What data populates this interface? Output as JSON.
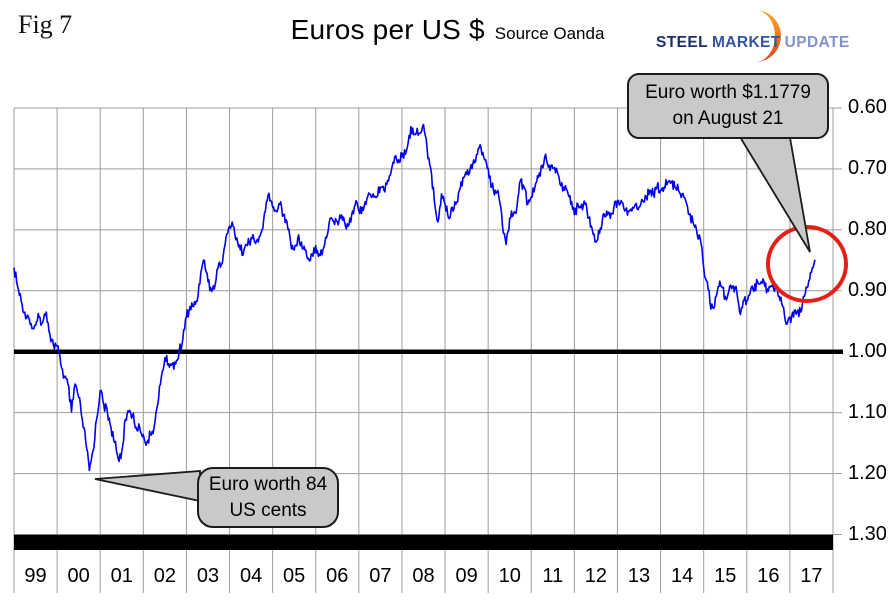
{
  "header": {
    "fig_label": "Fig 7",
    "title": "Euros per US $",
    "source": "Source Oanda",
    "logo": {
      "word1": "STEEL",
      "word2": "MARKET",
      "word3": "UPDATE"
    }
  },
  "annotations": {
    "callout_top": {
      "line1": "Euro worth $1.1779",
      "line2": "on August 21"
    },
    "callout_bottom": {
      "line1": "Euro worth 84",
      "line2": "US cents"
    }
  },
  "colors": {
    "line": "#0000ee",
    "grid": "#9d9d9d",
    "reference_line": "#000000",
    "callout_fill": "#c9c9c9",
    "circle": "#e41f18",
    "logo_steel": "#1b2f69",
    "logo_market": "#33549f",
    "logo_update": "#8193c7",
    "logo_swoosh_top": "#f7a823",
    "logo_swoosh_mid": "#ef7b22",
    "logo_swoosh_bottom": "#dc3b24"
  },
  "chart_data": {
    "type": "line",
    "title": "Euros per US $",
    "source": "Source Oanda",
    "ylabel": "",
    "xlabel": "",
    "y_axis_inverted": true,
    "ylim": [
      0.6,
      1.3
    ],
    "grid": true,
    "reference_line_value": 1.0,
    "bottom_bar_value": 1.3,
    "x_tick_labels": [
      "99",
      "00",
      "01",
      "02",
      "03",
      "04",
      "05",
      "06",
      "07",
      "08",
      "09",
      "10",
      "11",
      "12",
      "13",
      "14",
      "15",
      "16",
      "17"
    ],
    "y_tick_labels": [
      "0.60",
      "0.70",
      "0.80",
      "0.90",
      "1.00",
      "1.10",
      "1.20",
      "1.30"
    ],
    "annotation_points": [
      {
        "label": "Euro worth $1.1779 on August 21",
        "date": "2017-08-21",
        "value": 0.849
      },
      {
        "label": "Euro worth 84 US cents",
        "date": "2000-10",
        "value": 1.2
      }
    ],
    "series": [
      {
        "name": "Euros per US dollar (monthly, Jan 1999 - Aug 2017)",
        "start": "1999-01",
        "monthly_values": [
          0.862,
          0.893,
          0.917,
          0.935,
          0.943,
          0.962,
          0.957,
          0.943,
          0.952,
          0.935,
          0.971,
          0.99,
          0.99,
          1.02,
          1.042,
          1.053,
          1.099,
          1.053,
          1.075,
          1.111,
          1.149,
          1.195,
          1.163,
          1.111,
          1.064,
          1.087,
          1.099,
          1.124,
          1.149,
          1.176,
          1.163,
          1.111,
          1.099,
          1.105,
          1.124,
          1.124,
          1.136,
          1.149,
          1.136,
          1.124,
          1.087,
          1.042,
          1.01,
          1.02,
          1.02,
          1.02,
          1.0,
          0.98,
          0.943,
          0.926,
          0.926,
          0.917,
          0.87,
          0.85,
          0.885,
          0.901,
          0.89,
          0.855,
          0.855,
          0.813,
          0.794,
          0.794,
          0.813,
          0.833,
          0.833,
          0.826,
          0.813,
          0.82,
          0.82,
          0.8,
          0.769,
          0.74,
          0.763,
          0.769,
          0.758,
          0.775,
          0.787,
          0.82,
          0.833,
          0.813,
          0.82,
          0.833,
          0.847,
          0.84,
          0.826,
          0.84,
          0.833,
          0.813,
          0.781,
          0.787,
          0.787,
          0.781,
          0.787,
          0.794,
          0.775,
          0.758,
          0.769,
          0.763,
          0.758,
          0.741,
          0.741,
          0.746,
          0.73,
          0.735,
          0.719,
          0.704,
          0.68,
          0.685,
          0.68,
          0.676,
          0.645,
          0.633,
          0.641,
          0.641,
          0.627,
          0.667,
          0.699,
          0.752,
          0.787,
          0.741,
          0.758,
          0.781,
          0.763,
          0.758,
          0.735,
          0.714,
          0.709,
          0.699,
          0.685,
          0.676,
          0.665,
          0.685,
          0.699,
          0.73,
          0.735,
          0.746,
          0.794,
          0.824,
          0.781,
          0.775,
          0.763,
          0.719,
          0.73,
          0.758,
          0.746,
          0.73,
          0.714,
          0.694,
          0.676,
          0.694,
          0.699,
          0.699,
          0.725,
          0.73,
          0.735,
          0.758,
          0.775,
          0.758,
          0.758,
          0.758,
          0.781,
          0.8,
          0.82,
          0.806,
          0.775,
          0.769,
          0.781,
          0.763,
          0.752,
          0.752,
          0.769,
          0.769,
          0.769,
          0.758,
          0.763,
          0.752,
          0.746,
          0.735,
          0.741,
          0.73,
          0.735,
          0.73,
          0.722,
          0.722,
          0.73,
          0.735,
          0.741,
          0.752,
          0.775,
          0.787,
          0.8,
          0.813,
          0.862,
          0.885,
          0.93,
          0.926,
          0.893,
          0.893,
          0.909,
          0.901,
          0.893,
          0.893,
          0.935,
          0.917,
          0.917,
          0.901,
          0.901,
          0.885,
          0.885,
          0.893,
          0.901,
          0.893,
          0.893,
          0.909,
          0.926,
          0.955,
          0.943,
          0.943,
          0.935,
          0.935,
          0.909,
          0.893,
          0.87,
          0.849
        ]
      }
    ]
  }
}
